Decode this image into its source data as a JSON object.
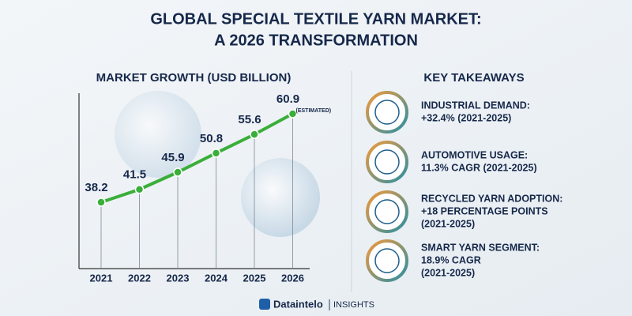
{
  "header": {
    "title_lines": [
      "GLOBAL SPECIAL TEXTILE YARN MARKET:",
      "A 2026 TRANSFORMATION"
    ]
  },
  "chart_data": {
    "type": "line",
    "title": "MARKET GROWTH (USD BILLION)",
    "categories": [
      "2021",
      "2022",
      "2023",
      "2024",
      "2025",
      "2026"
    ],
    "values": [
      38.2,
      41.5,
      45.9,
      50.8,
      55.6,
      60.9
    ],
    "annotation": "(ESTIMATED)",
    "color": "#3aae3a"
  },
  "takeaways": {
    "title": "KEY TAKEAWAYS",
    "items": [
      {
        "lines": [
          "INDUSTRIAL DEMAND:",
          "+32.4% (2021-2025)"
        ]
      },
      {
        "lines": [
          "AUTOMOTIVE USAGE:",
          "11.3% CAGR (2021-2025)"
        ]
      },
      {
        "lines": [
          "RECYCLED YARN ADOPTION:",
          "+18 PERCENTAGE POINTS",
          "(2021-2025)"
        ]
      },
      {
        "lines": [
          "SMART YARN SEGMENT:",
          "18.9% CAGR",
          "(2021-2025)"
        ]
      }
    ]
  },
  "footer": {
    "brand": "Dataintelo",
    "tag": "INSIGHTS"
  }
}
